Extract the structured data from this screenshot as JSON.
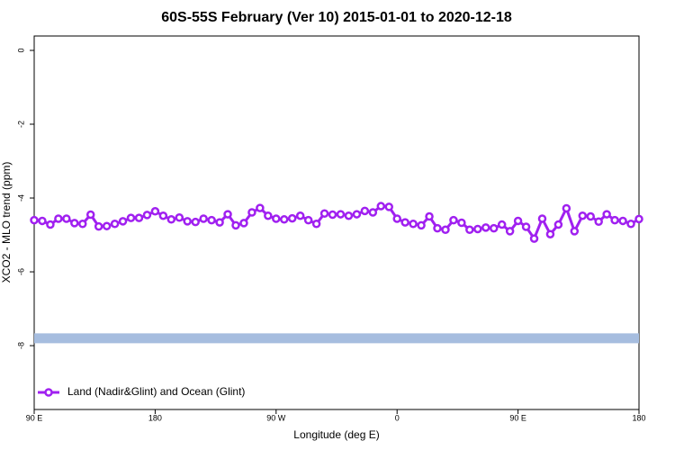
{
  "chart_data": {
    "type": "line",
    "title": "60S-55S February (Ver 10)   2015-01-01 to 2020-12-18",
    "x_label": "Longitude (deg E)",
    "y_label": "XCO2 - MLO trend (ppm)",
    "x": [
      90,
      96,
      102,
      108,
      114,
      120,
      126,
      132,
      138,
      144,
      150,
      156,
      162,
      168,
      174,
      180,
      186,
      192,
      198,
      204,
      210,
      216,
      222,
      228,
      234,
      240,
      246,
      252,
      258,
      264,
      270,
      276,
      282,
      288,
      294,
      300,
      306,
      312,
      318,
      324,
      330,
      336,
      342,
      348,
      354,
      360,
      366,
      372,
      378,
      384,
      390,
      396,
      402,
      408,
      414,
      420,
      426,
      432,
      438,
      444,
      450,
      456,
      462,
      468,
      474,
      480,
      486,
      492,
      498,
      504,
      510,
      516,
      522,
      528,
      534,
      540
    ],
    "series": [
      {
        "name": "Land (Nadir&Glint) and Ocean (Glint)",
        "color": "#a020f0",
        "values": [
          -4.6,
          -4.62,
          -4.72,
          -4.56,
          -4.56,
          -4.68,
          -4.7,
          -4.45,
          -4.77,
          -4.76,
          -4.7,
          -4.63,
          -4.54,
          -4.54,
          -4.46,
          -4.36,
          -4.48,
          -4.58,
          -4.53,
          -4.63,
          -4.65,
          -4.56,
          -4.6,
          -4.66,
          -4.44,
          -4.74,
          -4.68,
          -4.39,
          -4.27,
          -4.48,
          -4.56,
          -4.58,
          -4.55,
          -4.48,
          -4.6,
          -4.7,
          -4.42,
          -4.45,
          -4.44,
          -4.48,
          -4.44,
          -4.35,
          -4.39,
          -4.22,
          -4.24,
          -4.56,
          -4.66,
          -4.7,
          -4.74,
          -4.5,
          -4.82,
          -4.86,
          -4.6,
          -4.67,
          -4.86,
          -4.84,
          -4.8,
          -4.82,
          -4.72,
          -4.9,
          -4.62,
          -4.78,
          -5.1,
          -4.56,
          -4.98,
          -4.72,
          -4.28,
          -4.9,
          -4.48,
          -4.5,
          -4.64,
          -4.44,
          -4.6,
          -4.62,
          -4.7,
          -4.57
        ]
      }
    ],
    "band": {
      "value": -7.8,
      "color": "#a6bddf"
    },
    "xlim": [
      90,
      540
    ],
    "xticks": [
      {
        "value": 90,
        "label": "90 E"
      },
      180,
      {
        "value": 270,
        "label": "90 W"
      },
      {
        "value": 360,
        "label": "0"
      },
      {
        "value": 450,
        "label": "90 E"
      },
      {
        "value": 540,
        "label": "180"
      }
    ],
    "ylim": [
      -9.73,
      0.39
    ],
    "yticks": [
      0,
      -2,
      -4,
      -6,
      -8
    ],
    "legend": "bottom-left"
  }
}
